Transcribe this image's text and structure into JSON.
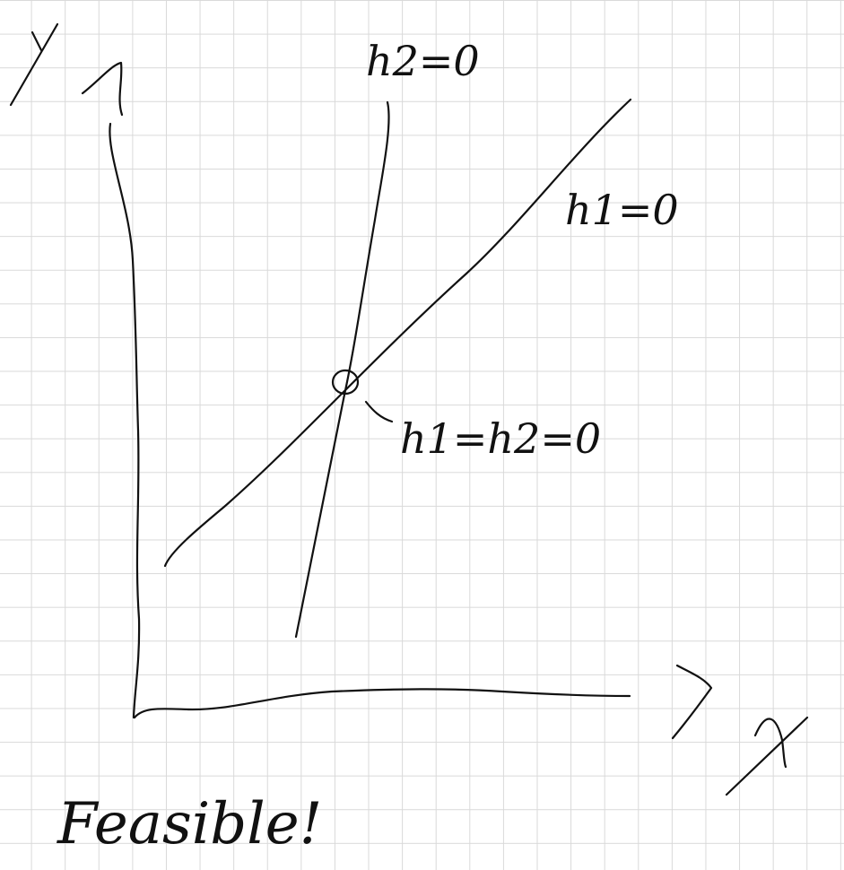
{
  "diagram": {
    "axis_labels": {
      "y": "Y",
      "x": "X"
    },
    "lines": [
      {
        "id": "h2",
        "label": "h2=0"
      },
      {
        "id": "h1",
        "label": "h1=0"
      }
    ],
    "intersection_label": "h1=h2=0",
    "note": "Feasible!",
    "ink_color": "#111111",
    "grid_color": "#d9d9d9"
  }
}
